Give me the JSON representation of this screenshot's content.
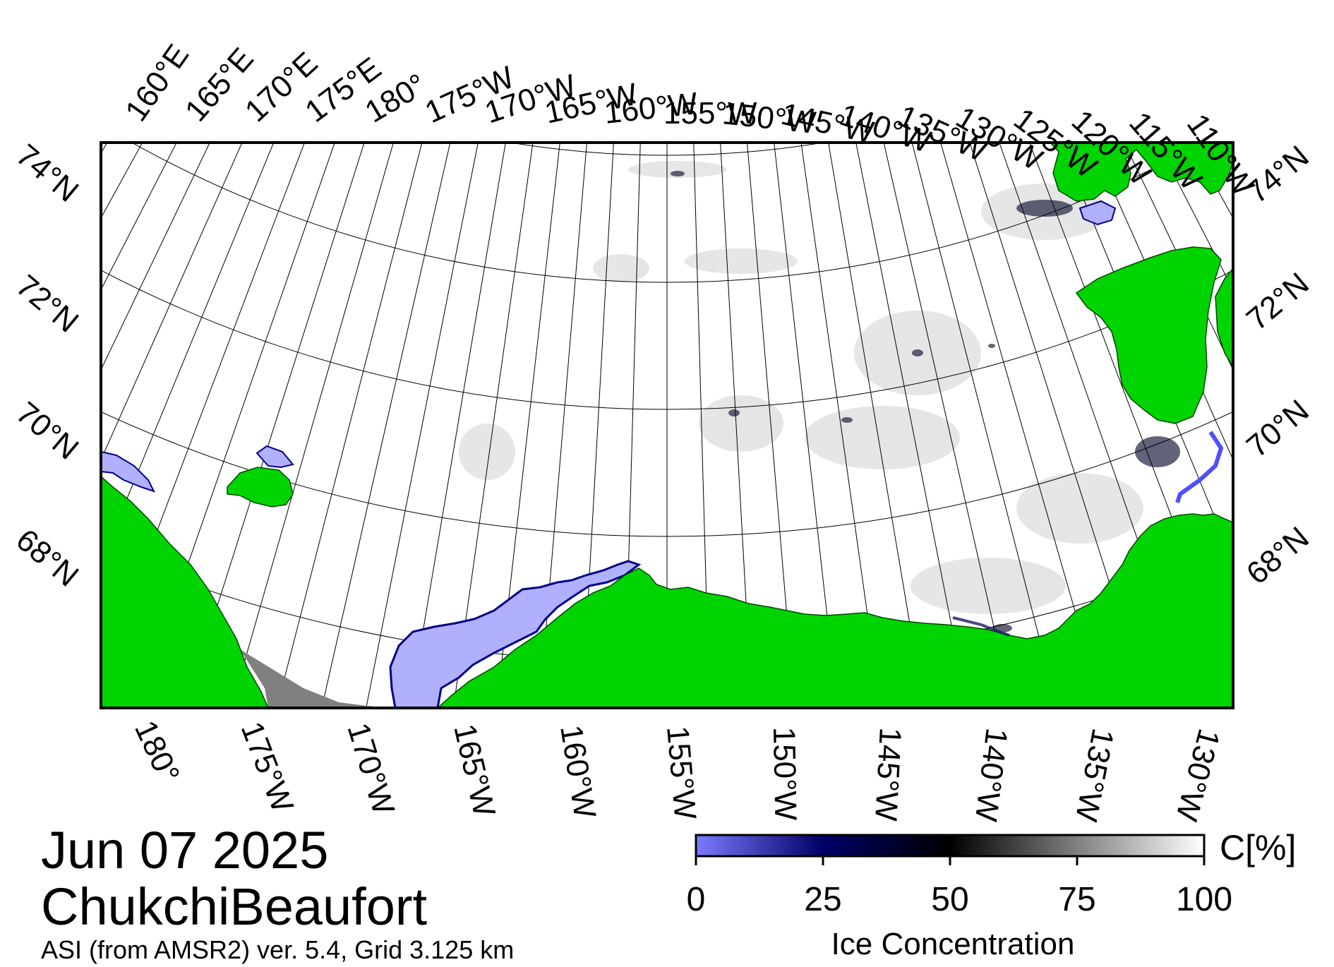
{
  "map": {
    "date": "Jun 07 2025",
    "region": "ChukchiBeaufort",
    "product": "ASI (from AMSR2) ver. 5.4,  Grid 3.125 km",
    "colors": {
      "land": "#00d400",
      "land_edge": "#006600",
      "low_ice": "#b0b0ff",
      "no_data": "#808080",
      "grid": "#000000"
    },
    "top_longitudes": [
      "160°E",
      "165°E",
      "170°E",
      "175°E",
      "180°",
      "175°W",
      "170°W",
      "165°W",
      "160°W",
      "155°W",
      "150°W",
      "145°W",
      "140°W",
      "135°W",
      "130°W",
      "125°W",
      "120°W",
      "115°W",
      "110°W"
    ],
    "bottom_longitudes": [
      "180°",
      "175°W",
      "170°W",
      "165°W",
      "160°W",
      "155°W",
      "150°W",
      "145°W",
      "140°W",
      "135°W",
      "130°W"
    ],
    "left_latitudes": [
      "74°N",
      "72°N",
      "70°N",
      "68°N"
    ],
    "right_latitudes": [
      "74°N",
      "72°N",
      "70°N",
      "68°N"
    ]
  },
  "colorbar": {
    "unit_label": "C[%]",
    "title": "Ice Concentration",
    "ticks": [
      "0",
      "25",
      "50",
      "75",
      "100"
    ],
    "stops": [
      "#7b7bff",
      "#000066",
      "#000000",
      "#808080",
      "#ffffff"
    ]
  }
}
